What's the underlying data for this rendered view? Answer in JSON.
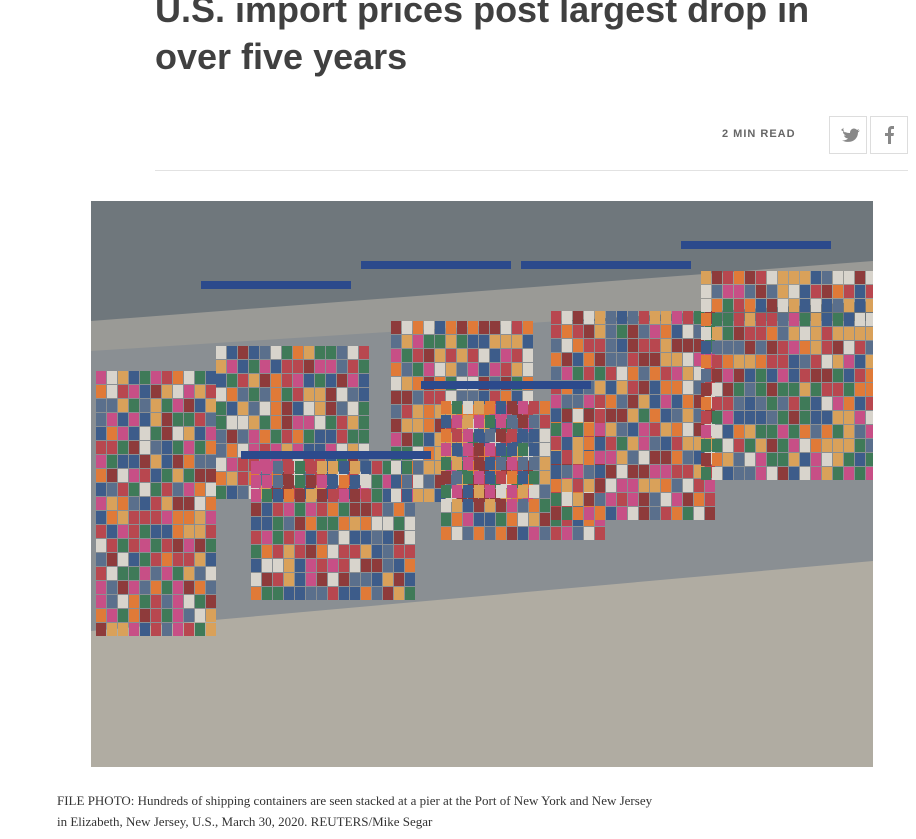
{
  "article": {
    "headline": "U.S. import prices post largest drop in over five years",
    "read_time": "2 MIN READ",
    "caption": "FILE PHOTO: Hundreds of shipping containers are seen stacked at a pier at the Port of New York and New Jersey in Elizabeth, New Jersey, U.S., March 30, 2020. REUTERS/Mike Segar"
  }
}
